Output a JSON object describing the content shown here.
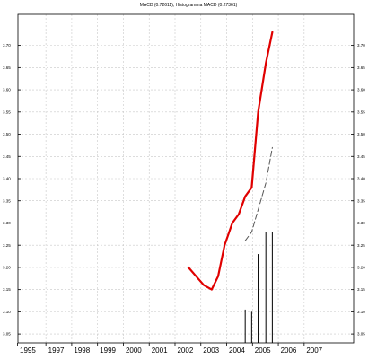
{
  "chart_data": {
    "type": "line",
    "title": "MACD (0.72611), Histogramma MACD (0.27361)",
    "x_ticks": [
      "1995",
      "1997",
      "1998",
      "1999",
      "2000",
      "2001",
      "2002",
      "2003",
      "2004",
      "2005",
      "2006",
      "2007"
    ],
    "y_ticks": [
      "3.05",
      "3.10",
      "3.15",
      "3.20",
      "3.25",
      "3.30",
      "3.35",
      "3.40",
      "3.45",
      "3.50",
      "3.55",
      "3.60",
      "3.65",
      "3.70"
    ],
    "xlim": [
      1995,
      2008
    ],
    "ylim": [
      3.03,
      3.77
    ],
    "grid": true,
    "series": [
      {
        "color": "#e00000",
        "x": [
          2001.6,
          2001.9,
          2002.2,
          2002.5,
          2002.75,
          2003.0,
          2003.3,
          2003.55,
          2003.8,
          2004.05,
          2004.3,
          2004.6,
          2004.85
        ],
        "y": [
          3.2,
          3.18,
          3.16,
          3.15,
          3.18,
          3.25,
          3.3,
          3.32,
          3.36,
          3.38,
          3.55,
          3.66,
          3.73
        ]
      },
      {
        "color": "#555555",
        "style": "dashed",
        "x": [
          2003.8,
          2004.05,
          2004.3,
          2004.6,
          2004.85
        ],
        "y": [
          3.26,
          3.28,
          3.33,
          3.39,
          3.47
        ]
      }
    ],
    "histogram": {
      "color": "#000000",
      "x": [
        2003.8,
        2004.05,
        2004.3,
        2004.6,
        2004.85
      ],
      "y": [
        3.105,
        3.1,
        3.23,
        3.28,
        3.28
      ]
    }
  }
}
